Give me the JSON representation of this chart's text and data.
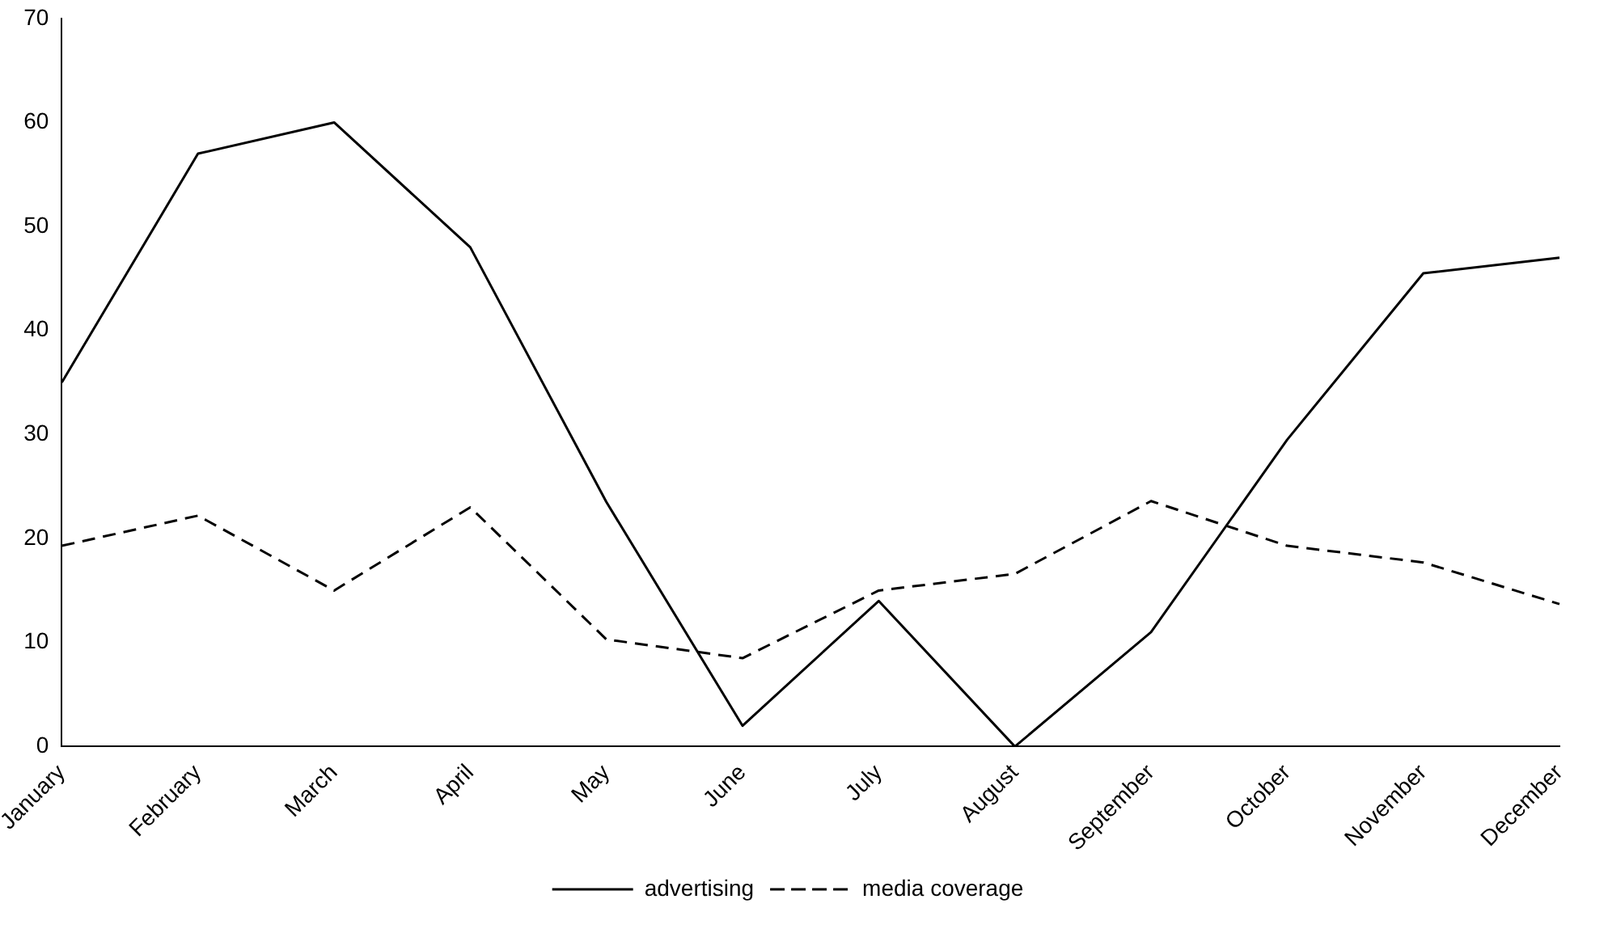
{
  "chart_data": {
    "type": "line",
    "categories": [
      "January",
      "February",
      "March",
      "April",
      "May",
      "June",
      "July",
      "August",
      "September",
      "October",
      "November",
      "December"
    ],
    "series": [
      {
        "name": "advertising",
        "color": "#000000",
        "line_style": "solid",
        "values": [
          35,
          57,
          60,
          48,
          23.5,
          2,
          14,
          0,
          11,
          29.5,
          45.5,
          47
        ]
      },
      {
        "name": "media coverage",
        "color": "#000000",
        "line_style": "dashed",
        "values": [
          19.3,
          22.2,
          15,
          23,
          10.3,
          8.5,
          15,
          16.6,
          23.6,
          19.3,
          17.7,
          13.7
        ]
      }
    ],
    "ylim": [
      0,
      70
    ],
    "yticks": [
      0,
      10,
      20,
      30,
      40,
      50,
      60,
      70
    ],
    "grid": false,
    "legend": "bottom",
    "marker": "none"
  }
}
